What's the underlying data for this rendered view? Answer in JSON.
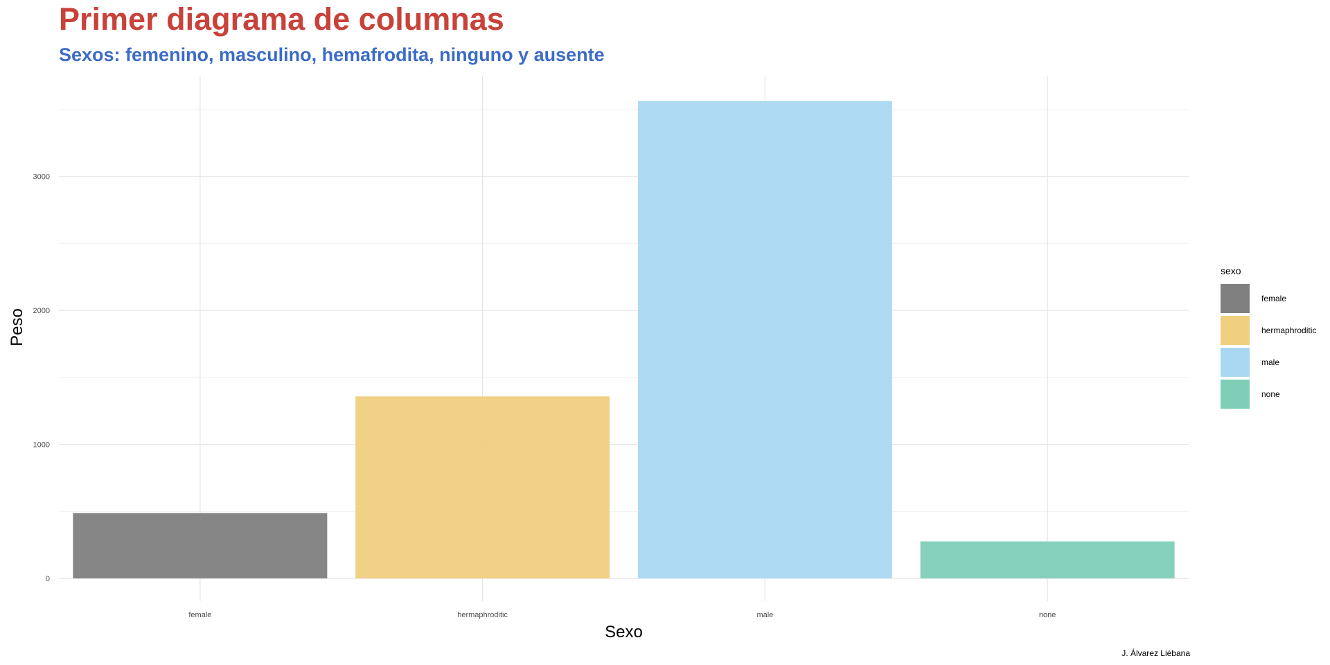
{
  "title": "Primer diagrama de columnas",
  "subtitle": "Sexos: femenino, masculino, hemafrodita, ninguno y ausente",
  "caption": "J. Álvarez Liébana",
  "colors": {
    "title": "#c8423a",
    "subtitle": "#3b6cc6",
    "grid": "#e5e5e5",
    "baseline": "#dcdcdc"
  },
  "legend": {
    "title": "sexo",
    "items": [
      {
        "label": "female",
        "color": "#808080"
      },
      {
        "label": "hermaphroditic",
        "color": "#f0cf80"
      },
      {
        "label": "male",
        "color": "#aad8f2"
      },
      {
        "label": "none",
        "color": "#7fcfb8"
      }
    ]
  },
  "chart_data": {
    "type": "bar",
    "title": "Primer diagrama de columnas",
    "subtitle": "Sexos: femenino, masculino, hemafrodita, ninguno y ausente",
    "xlabel": "Sexo",
    "ylabel": "Peso",
    "categories": [
      "female",
      "hermaphroditic",
      "male",
      "none"
    ],
    "values": [
      487,
      1358,
      3561,
      276
    ],
    "colors": [
      "#808080",
      "#f0cf80",
      "#aad8f2",
      "#7fcfb8"
    ],
    "yticks": [
      0,
      1000,
      2000,
      3000
    ],
    "ylim": [
      0,
      3561
    ],
    "grid": true,
    "legend_position": "right"
  }
}
